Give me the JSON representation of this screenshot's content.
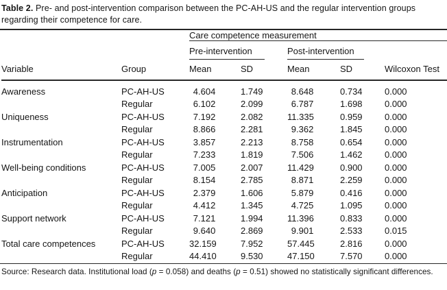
{
  "caption": {
    "label": "Table 2.",
    "text": " Pre- and post-intervention comparison between the PC-AH-US and the regular intervention groups regarding their competence for care."
  },
  "table": {
    "spanner": "Care competence measurement",
    "pre_group": "Pre-intervention",
    "post_group": "Post-intervention",
    "columns": {
      "variable": "Variable",
      "group": "Group",
      "pre_mean": "Mean",
      "pre_sd": "SD",
      "post_mean": "Mean",
      "post_sd": "SD",
      "wilcoxon": "Wilcoxon Test"
    },
    "rows": [
      {
        "variable": "Awareness",
        "group": "PC-AH-US",
        "pre_mean": "4.604",
        "pre_sd": "1.749",
        "post_mean": "8.648",
        "post_sd": "0.734",
        "wilcoxon": "0.000"
      },
      {
        "variable": "",
        "group": "Regular",
        "pre_mean": "6.102",
        "pre_sd": "2.099",
        "post_mean": "6.787",
        "post_sd": "1.698",
        "wilcoxon": "0.000"
      },
      {
        "variable": "Uniqueness",
        "group": "PC-AH-US",
        "pre_mean": "7.192",
        "pre_sd": "2.082",
        "post_mean": "11.335",
        "post_sd": "0.959",
        "wilcoxon": "0.000"
      },
      {
        "variable": "",
        "group": "Regular",
        "pre_mean": "8.866",
        "pre_sd": "2.281",
        "post_mean": "9.362",
        "post_sd": "1.845",
        "wilcoxon": "0.000"
      },
      {
        "variable": "Instrumentation",
        "group": "PC-AH-US",
        "pre_mean": "3.857",
        "pre_sd": "2.213",
        "post_mean": "8.758",
        "post_sd": "0.654",
        "wilcoxon": "0.000"
      },
      {
        "variable": "",
        "group": "Regular",
        "pre_mean": "7.233",
        "pre_sd": "1.819",
        "post_mean": "7.506",
        "post_sd": "1.462",
        "wilcoxon": "0.000"
      },
      {
        "variable": "Well-being conditions",
        "group": "PC-AH-US",
        "pre_mean": "7.005",
        "pre_sd": "2.007",
        "post_mean": "11.429",
        "post_sd": "0.900",
        "wilcoxon": "0.000"
      },
      {
        "variable": "",
        "group": "Regular",
        "pre_mean": "8.154",
        "pre_sd": "2.785",
        "post_mean": "8.871",
        "post_sd": "2.259",
        "wilcoxon": "0.000"
      },
      {
        "variable": "Anticipation",
        "group": "PC-AH-US",
        "pre_mean": "2.379",
        "pre_sd": "1.606",
        "post_mean": "5.879",
        "post_sd": "0.416",
        "wilcoxon": "0.000"
      },
      {
        "variable": "",
        "group": "Regular",
        "pre_mean": "4.412",
        "pre_sd": "1.345",
        "post_mean": "4.725",
        "post_sd": "1.095",
        "wilcoxon": "0.000"
      },
      {
        "variable": "Support network",
        "group": "PC-AH-US",
        "pre_mean": "7.121",
        "pre_sd": "1.994",
        "post_mean": "11.396",
        "post_sd": "0.833",
        "wilcoxon": "0.000"
      },
      {
        "variable": "",
        "group": "Regular",
        "pre_mean": "9.640",
        "pre_sd": "2.869",
        "post_mean": "9.901",
        "post_sd": "2.533",
        "wilcoxon": "0.015"
      },
      {
        "variable": "Total care competences",
        "group": "PC-AH-US",
        "pre_mean": "32.159",
        "pre_sd": "7.952",
        "post_mean": "57.445",
        "post_sd": "2.816",
        "wilcoxon": "0.000"
      },
      {
        "variable": "",
        "group": "Regular",
        "pre_mean": "44.410",
        "pre_sd": "9.530",
        "post_mean": "47.150",
        "post_sd": "7.570",
        "wilcoxon": "0.000"
      }
    ]
  },
  "source_note": {
    "part1": "Source: Research data. Institutional load (",
    "p1": "p",
    "part2": " = 0.058) and deaths (",
    "p2": "p",
    "part3": " = 0.51) showed no statistically significant differences."
  },
  "colors": {
    "background": "#ffffff",
    "text": "#151515",
    "rule": "#262626"
  }
}
